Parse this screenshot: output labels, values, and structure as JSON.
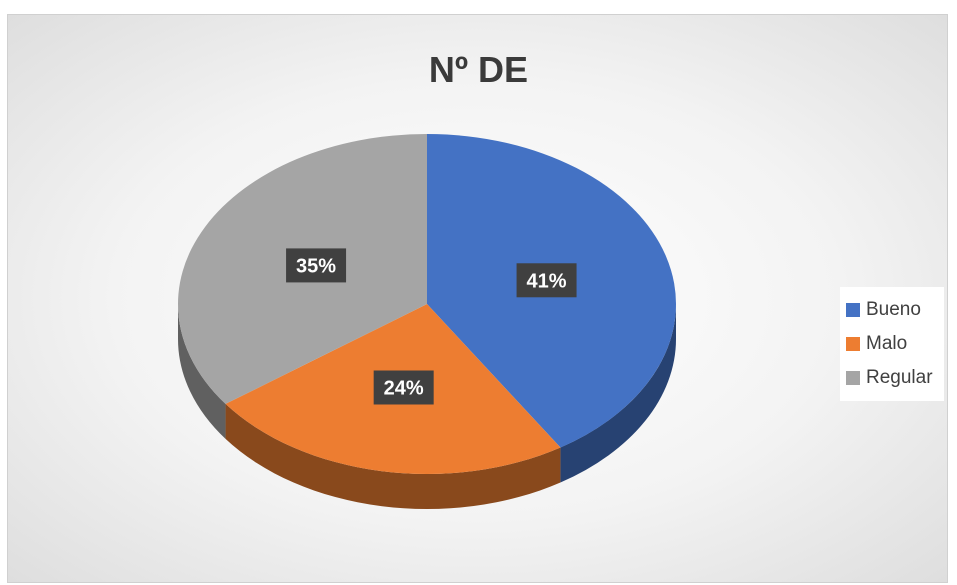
{
  "chart_data": {
    "type": "pie",
    "title": "Nº DE",
    "categories": [
      "Bueno",
      "Malo",
      "Regular"
    ],
    "values": [
      41,
      24,
      35
    ],
    "data_labels": [
      "41%",
      "24%",
      "35%"
    ],
    "colors": [
      "#4472c4",
      "#ed7d31",
      "#a5a5a5"
    ],
    "legend_position": "right",
    "style": "3d"
  }
}
